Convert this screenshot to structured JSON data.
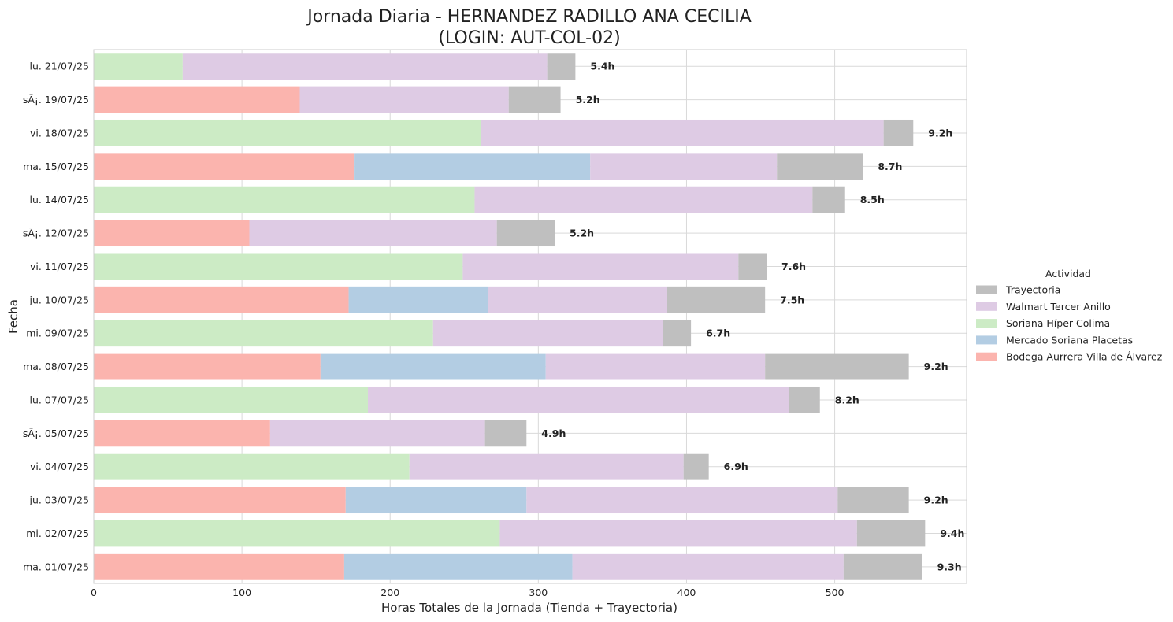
{
  "chart_data": {
    "type": "bar",
    "orientation": "horizontal",
    "stacked": true,
    "title": "Jornada Diaria - HERNANDEZ RADILLO ANA CECILIA",
    "subtitle": "(LOGIN: AUT-COL-02)",
    "xlabel": "Horas Totales de la Jornada (Tienda + Trayectoria)",
    "ylabel": "Fecha",
    "xlim": [
      0,
      589
    ],
    "xticks": [
      0,
      100,
      200,
      300,
      400,
      500
    ],
    "grid": true,
    "legend": {
      "title": "Actividad",
      "placement": "center-right"
    },
    "categories": [
      "ma. 01/07/25",
      "mi. 02/07/25",
      "ju. 03/07/25",
      "vi. 04/07/25",
      "sÃ¡. 05/07/25",
      "lu. 07/07/25",
      "ma. 08/07/25",
      "mi. 09/07/25",
      "ju. 10/07/25",
      "vi. 11/07/25",
      "sÃ¡. 12/07/25",
      "lu. 14/07/25",
      "ma. 15/07/25",
      "vi. 18/07/25",
      "sÃ¡. 19/07/25",
      "lu. 21/07/25"
    ],
    "series": [
      {
        "name": "Bodega Aurrera Villa de Álvarez",
        "color": "#fbb4ae",
        "values": [
          169,
          0,
          170,
          0,
          119,
          0,
          153,
          0,
          172,
          0,
          105,
          0,
          176,
          0,
          139,
          0
        ]
      },
      {
        "name": "Mercado Soriana Placetas",
        "color": "#b3cde3",
        "values": [
          154,
          0,
          122,
          0,
          0,
          0,
          152,
          0,
          94,
          0,
          0,
          0,
          159,
          0,
          0,
          0
        ]
      },
      {
        "name": "Soriana Híper Colima",
        "color": "#ccebc5",
        "values": [
          0,
          274,
          0,
          213,
          0,
          185,
          0,
          229,
          0,
          249,
          0,
          257,
          0,
          261,
          0,
          60
        ]
      },
      {
        "name": "Walmart Tercer Anillo",
        "color": "#decbe4",
        "values": [
          183,
          241,
          210,
          185,
          145,
          284,
          148,
          155,
          121,
          186,
          167,
          228,
          126,
          272,
          141,
          246
        ]
      },
      {
        "name": "Trayectoria",
        "color": "#bfbfbf",
        "values": [
          53,
          46,
          48,
          17,
          28,
          21,
          97,
          19,
          66,
          19,
          39,
          22,
          58,
          20,
          35,
          19
        ]
      }
    ],
    "totals": [
      "9.3h",
      "9.4h",
      "9.2h",
      "6.9h",
      "4.9h",
      "8.2h",
      "9.2h",
      "6.7h",
      "7.5h",
      "7.6h",
      "5.2h",
      "8.5h",
      "8.7h",
      "9.2h",
      "5.2h",
      "5.4h"
    ]
  }
}
